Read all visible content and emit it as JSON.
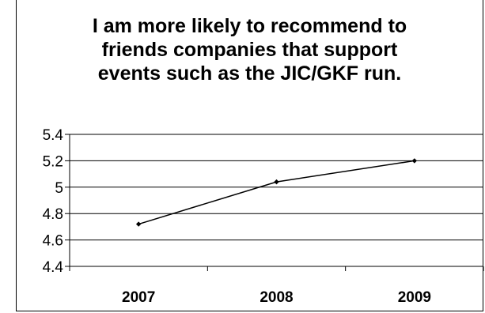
{
  "chart_data": {
    "type": "line",
    "title_lines": [
      "I am more likely to recommend to",
      "friends companies that support",
      "events such as the JIC/GKF run."
    ],
    "categories": [
      "2007",
      "2008",
      "2009"
    ],
    "series": [
      {
        "values": [
          4.72,
          5.04,
          5.2
        ],
        "color": "#000000"
      }
    ],
    "yticks": [
      "5.4",
      "5.2",
      "5",
      "4.8",
      "4.6",
      "4.4"
    ],
    "ylim": [
      4.4,
      5.4
    ],
    "grid": true,
    "legend": "none",
    "xlabel": "",
    "ylabel": ""
  }
}
